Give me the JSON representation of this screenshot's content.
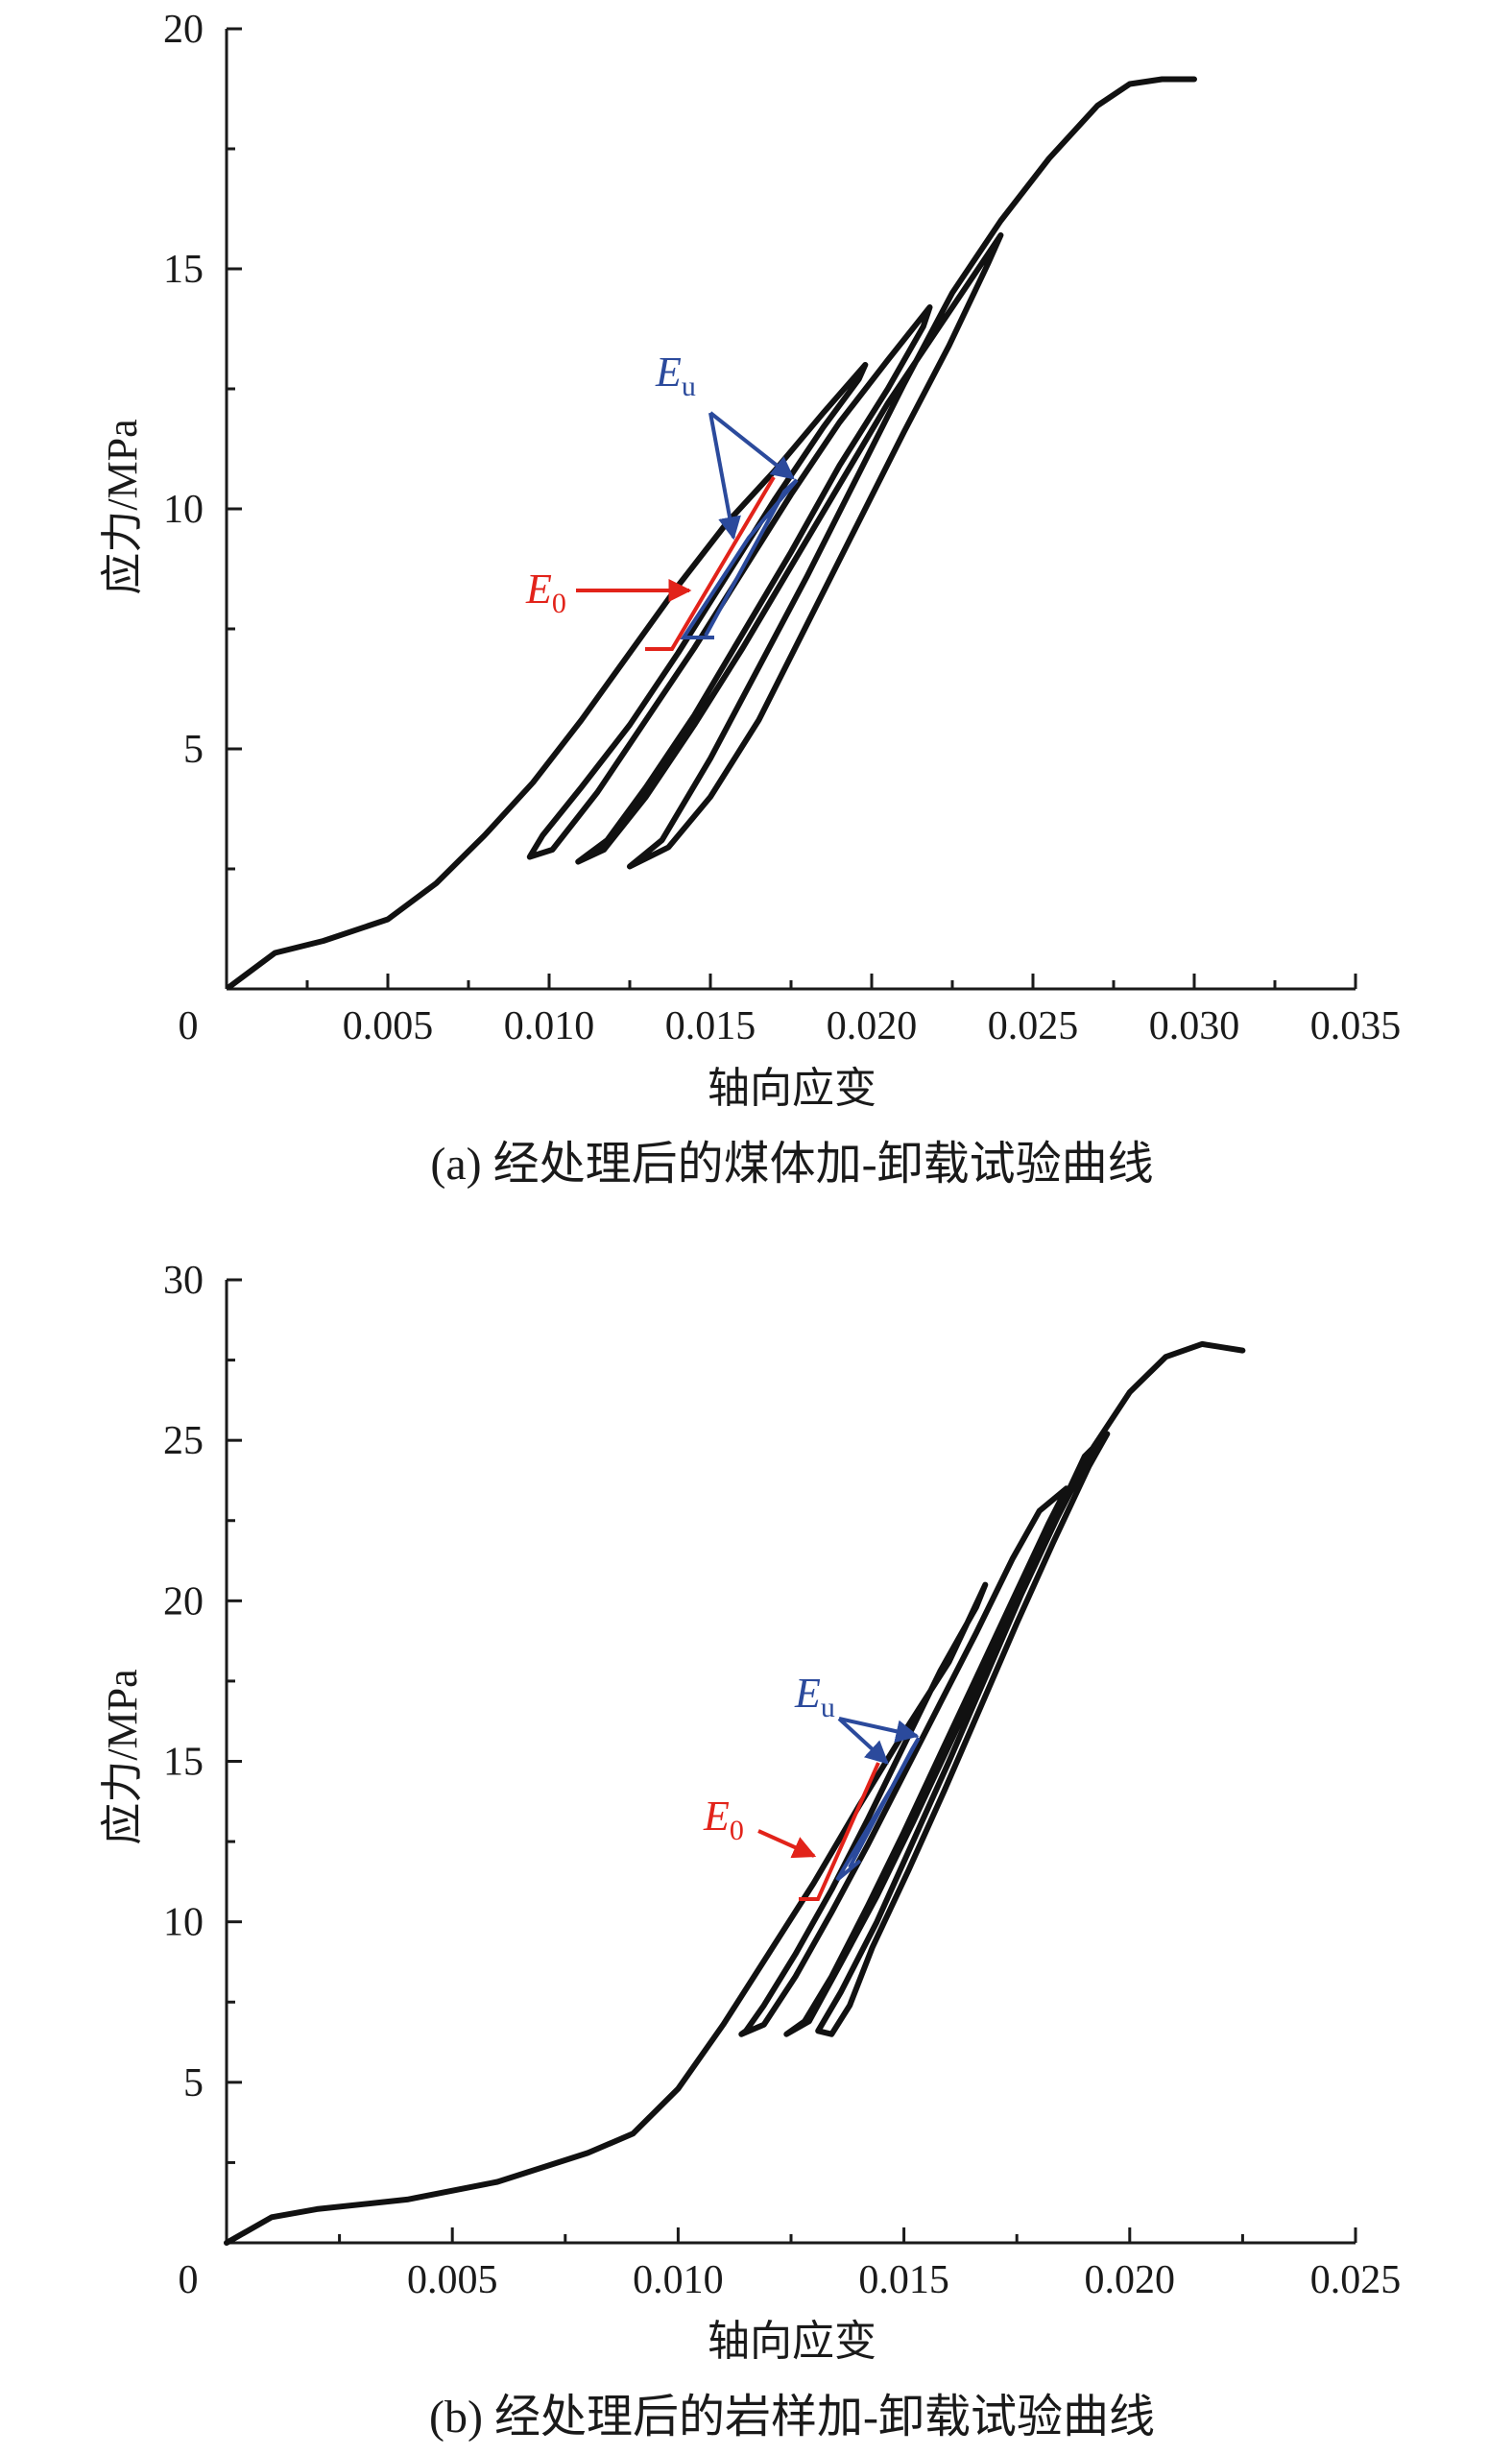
{
  "chart_data": [
    {
      "type": "line",
      "panel": "a",
      "caption": "(a) 经处理后的煤体加-卸载试验曲线",
      "xlabel": "轴向应变",
      "ylabel": "应力/MPa",
      "xlim": [
        0,
        0.035
      ],
      "ylim": [
        0,
        20
      ],
      "x_ticks": [
        "0.005",
        "0.010",
        "0.015",
        "0.020",
        "0.025",
        "0.030",
        "0.035"
      ],
      "y_ticks": [
        "5",
        "10",
        "15",
        "20"
      ],
      "origin_label": "0",
      "grid": false,
      "line_color": "#111111",
      "series": [
        {
          "points": [
            [
              0.0001,
              0.05
            ],
            [
              0.0015,
              0.75
            ],
            [
              0.003,
              1.0
            ],
            [
              0.005,
              1.45
            ],
            [
              0.0065,
              2.2
            ],
            [
              0.008,
              3.2
            ],
            [
              0.0095,
              4.3
            ],
            [
              0.011,
              5.6
            ],
            [
              0.0125,
              7.0
            ],
            [
              0.014,
              8.4
            ],
            [
              0.0155,
              9.7
            ],
            [
              0.017,
              10.8
            ],
            [
              0.0185,
              12.0
            ],
            [
              0.0198,
              13.0
            ],
            [
              0.0196,
              12.7
            ],
            [
              0.0185,
              11.7
            ],
            [
              0.017,
              10.2
            ],
            [
              0.0155,
              8.6
            ],
            [
              0.014,
              7.0
            ],
            [
              0.0125,
              5.5
            ],
            [
              0.011,
              4.2
            ],
            [
              0.0098,
              3.2
            ],
            [
              0.0094,
              2.75
            ],
            [
              0.0101,
              2.9
            ],
            [
              0.0115,
              4.1
            ],
            [
              0.013,
              5.6
            ],
            [
              0.0145,
              7.1
            ],
            [
              0.016,
              8.7
            ],
            [
              0.0175,
              10.3
            ],
            [
              0.019,
              11.8
            ],
            [
              0.0205,
              13.1
            ],
            [
              0.0218,
              14.2
            ],
            [
              0.0216,
              13.8
            ],
            [
              0.0205,
              12.5
            ],
            [
              0.019,
              10.9
            ],
            [
              0.0175,
              9.1
            ],
            [
              0.016,
              7.4
            ],
            [
              0.0145,
              5.7
            ],
            [
              0.013,
              4.2
            ],
            [
              0.0118,
              3.1
            ],
            [
              0.0109,
              2.65
            ],
            [
              0.0117,
              2.9
            ],
            [
              0.013,
              4.0
            ],
            [
              0.0145,
              5.5
            ],
            [
              0.016,
              7.1
            ],
            [
              0.0175,
              8.8
            ],
            [
              0.019,
              10.5
            ],
            [
              0.0205,
              12.2
            ],
            [
              0.022,
              13.7
            ],
            [
              0.0233,
              15.0
            ],
            [
              0.024,
              15.7
            ],
            [
              0.0236,
              15.1
            ],
            [
              0.0224,
              13.4
            ],
            [
              0.021,
              11.6
            ],
            [
              0.0195,
              9.6
            ],
            [
              0.018,
              7.6
            ],
            [
              0.0165,
              5.6
            ],
            [
              0.015,
              4.0
            ],
            [
              0.0137,
              2.95
            ],
            [
              0.0125,
              2.55
            ],
            [
              0.0135,
              3.1
            ],
            [
              0.015,
              4.8
            ],
            [
              0.0165,
              6.7
            ],
            [
              0.018,
              8.6
            ],
            [
              0.0195,
              10.6
            ],
            [
              0.021,
              12.6
            ],
            [
              0.0225,
              14.5
            ],
            [
              0.024,
              16.0
            ],
            [
              0.0255,
              17.3
            ],
            [
              0.027,
              18.4
            ],
            [
              0.028,
              18.85
            ],
            [
              0.029,
              18.95
            ],
            [
              0.03,
              18.95
            ]
          ]
        }
      ],
      "annotations": {
        "E0": {
          "label": "E",
          "sub": "0",
          "color": "#e2231a"
        },
        "Eu": {
          "label": "E",
          "sub": "u",
          "color": "#2b4a9c"
        }
      }
    },
    {
      "type": "line",
      "panel": "b",
      "caption": "(b) 经处理后的岩样加-卸载试验曲线",
      "xlabel": "轴向应变",
      "ylabel": "应力/MPa",
      "xlim": [
        0,
        0.025
      ],
      "ylim": [
        0,
        30
      ],
      "x_ticks": [
        "0.005",
        "0.010",
        "0.015",
        "0.020",
        "0.025"
      ],
      "y_ticks": [
        "5",
        "10",
        "15",
        "20",
        "25",
        "30"
      ],
      "origin_label": "0",
      "grid": false,
      "line_color": "#111111",
      "series": [
        {
          "points": [
            [
              0.0,
              0.0
            ],
            [
              0.001,
              0.8
            ],
            [
              0.002,
              1.05
            ],
            [
              0.004,
              1.35
            ],
            [
              0.006,
              1.9
            ],
            [
              0.008,
              2.8
            ],
            [
              0.009,
              3.4
            ],
            [
              0.01,
              4.8
            ],
            [
              0.011,
              6.8
            ],
            [
              0.012,
              9.0
            ],
            [
              0.013,
              11.2
            ],
            [
              0.014,
              13.6
            ],
            [
              0.015,
              15.9
            ],
            [
              0.016,
              18.1
            ],
            [
              0.0168,
              20.5
            ],
            [
              0.0166,
              19.8
            ],
            [
              0.0158,
              17.8
            ],
            [
              0.015,
              15.5
            ],
            [
              0.0142,
              13.2
            ],
            [
              0.0134,
              11.0
            ],
            [
              0.0126,
              9.0
            ],
            [
              0.0119,
              7.4
            ],
            [
              0.0115,
              6.6
            ],
            [
              0.0114,
              6.5
            ],
            [
              0.0119,
              6.8
            ],
            [
              0.0126,
              8.3
            ],
            [
              0.0134,
              10.3
            ],
            [
              0.0142,
              12.4
            ],
            [
              0.015,
              14.6
            ],
            [
              0.0158,
              16.8
            ],
            [
              0.0166,
              19.0
            ],
            [
              0.0174,
              21.3
            ],
            [
              0.018,
              22.8
            ],
            [
              0.0186,
              23.5
            ],
            [
              0.0182,
              22.4
            ],
            [
              0.0174,
              20.0
            ],
            [
              0.0166,
              17.6
            ],
            [
              0.0158,
              15.2
            ],
            [
              0.015,
              12.8
            ],
            [
              0.0142,
              10.5
            ],
            [
              0.0134,
              8.3
            ],
            [
              0.0128,
              6.9
            ],
            [
              0.0124,
              6.5
            ],
            [
              0.0129,
              6.9
            ],
            [
              0.0136,
              8.7
            ],
            [
              0.0144,
              10.8
            ],
            [
              0.0152,
              13.1
            ],
            [
              0.016,
              15.5
            ],
            [
              0.0168,
              17.9
            ],
            [
              0.0176,
              20.3
            ],
            [
              0.0184,
              22.7
            ],
            [
              0.019,
              24.5
            ],
            [
              0.0195,
              25.2
            ],
            [
              0.0191,
              24.2
            ],
            [
              0.0183,
              21.8
            ],
            [
              0.0175,
              19.3
            ],
            [
              0.0167,
              16.7
            ],
            [
              0.0159,
              14.1
            ],
            [
              0.0151,
              11.6
            ],
            [
              0.0143,
              9.2
            ],
            [
              0.0138,
              7.4
            ],
            [
              0.0134,
              6.5
            ],
            [
              0.0131,
              6.6
            ],
            [
              0.0136,
              7.8
            ],
            [
              0.0144,
              10.0
            ],
            [
              0.0152,
              12.5
            ],
            [
              0.016,
              15.0
            ],
            [
              0.0168,
              17.6
            ],
            [
              0.0176,
              20.2
            ],
            [
              0.0184,
              22.6
            ],
            [
              0.0192,
              24.8
            ],
            [
              0.02,
              26.5
            ],
            [
              0.0208,
              27.6
            ],
            [
              0.0216,
              28.0
            ],
            [
              0.0225,
              27.8
            ]
          ]
        }
      ],
      "annotations": {
        "E0": {
          "label": "E",
          "sub": "0",
          "color": "#e2231a"
        },
        "Eu": {
          "label": "E",
          "sub": "u",
          "color": "#2b4a9c"
        }
      }
    }
  ]
}
